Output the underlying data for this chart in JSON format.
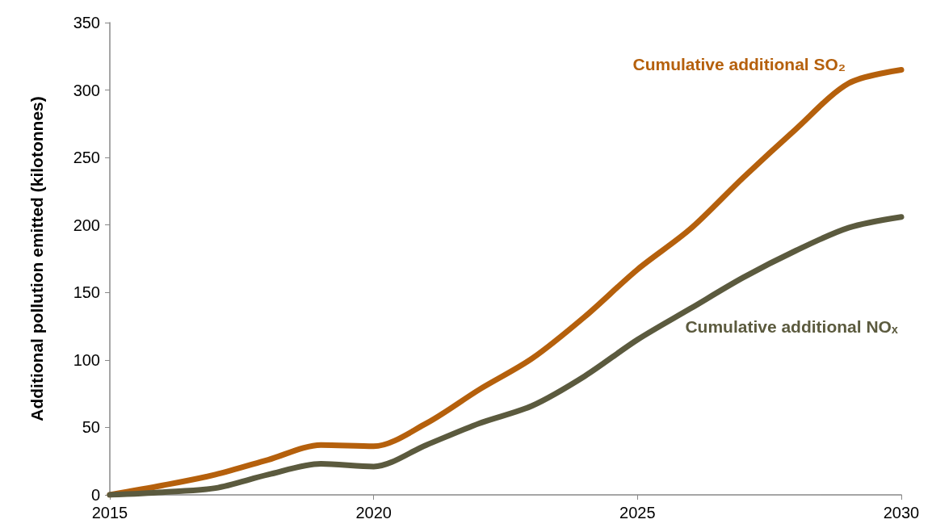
{
  "chart_data": {
    "type": "line",
    "ylabel": "Additional pollution emitted (kilotonnes)",
    "x": [
      2015,
      2016,
      2017,
      2018,
      2019,
      2020,
      2021,
      2022,
      2023,
      2024,
      2025,
      2026,
      2027,
      2028,
      2029,
      2030
    ],
    "series": [
      {
        "name": "Cumulative additional SO₂",
        "color": "#b5600c",
        "values": [
          0,
          7,
          15,
          26,
          37,
          36,
          53,
          78,
          101,
          132,
          167,
          197,
          235,
          271,
          305,
          315
        ]
      },
      {
        "name": "Cumulative additional NOₓ",
        "color": "#5b5a3e",
        "values": [
          0,
          2,
          5,
          15,
          23,
          21,
          37,
          53,
          66,
          88,
          115,
          138,
          161,
          181,
          198,
          206
        ]
      }
    ],
    "xlim": [
      2015,
      2030
    ],
    "xticks": [
      2015,
      2020,
      2025,
      2030
    ],
    "ylim": [
      0,
      350
    ],
    "yticks": [
      0,
      50,
      100,
      150,
      200,
      250,
      300,
      350
    ],
    "grid": false,
    "legend": false,
    "marker": "none",
    "line_style": "solid"
  }
}
